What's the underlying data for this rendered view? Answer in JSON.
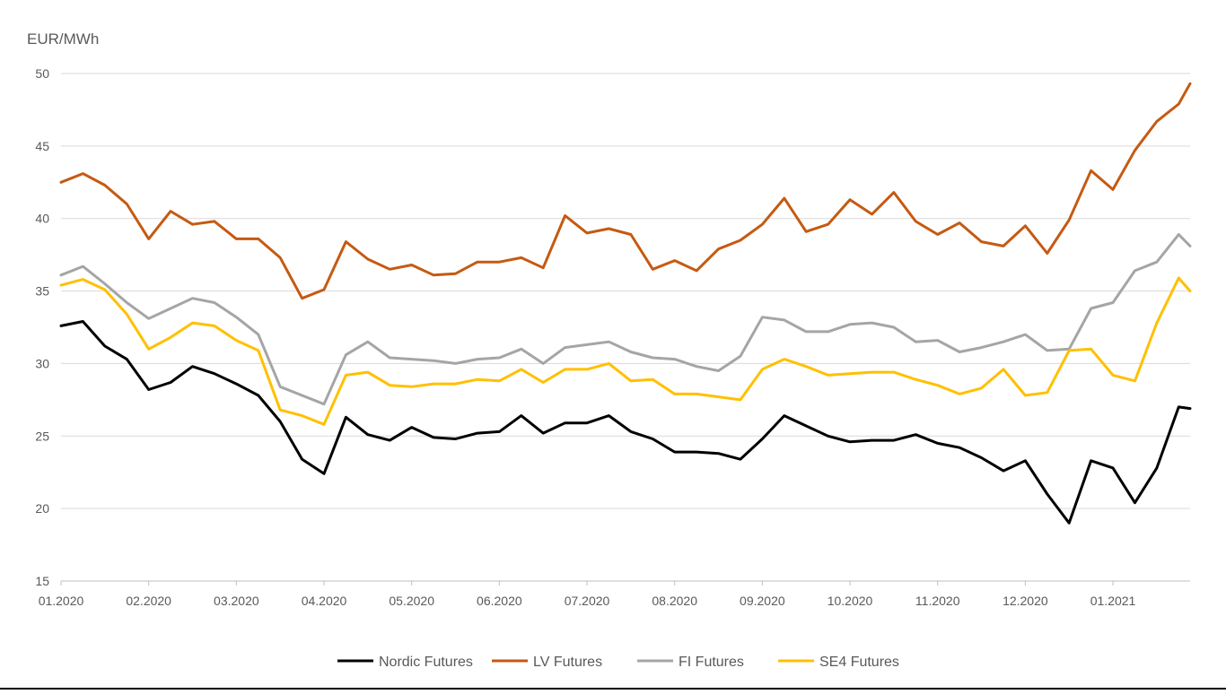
{
  "chart_data": {
    "type": "line",
    "title": "",
    "ylabel": "EUR/MWh",
    "xlabel": "",
    "ylim": [
      15,
      50
    ],
    "yticks": [
      15,
      20,
      25,
      30,
      35,
      40,
      45,
      50
    ],
    "x_tick_labels": [
      "01.2020",
      "02.2020",
      "03.2020",
      "04.2020",
      "05.2020",
      "06.2020",
      "07.2020",
      "08.2020",
      "09.2020",
      "10.2020",
      "11.2020",
      "12.2020",
      "01.2021"
    ],
    "x_domain": [
      0,
      12.88
    ],
    "grid": "horizontal",
    "legend_position": "bottom",
    "x": [
      0,
      0.25,
      0.5,
      0.75,
      1,
      1.25,
      1.5,
      1.75,
      2,
      2.25,
      2.5,
      2.75,
      3,
      3.25,
      3.5,
      3.75,
      4,
      4.25,
      4.5,
      4.75,
      5,
      5.25,
      5.5,
      5.75,
      6,
      6.25,
      6.5,
      6.75,
      7,
      7.25,
      7.5,
      7.75,
      8,
      8.25,
      8.5,
      8.75,
      9,
      9.25,
      9.5,
      9.75,
      10,
      10.25,
      10.5,
      10.75,
      11,
      11.25,
      11.5,
      11.75,
      12,
      12.25,
      12.5,
      12.75,
      12.88
    ],
    "series": [
      {
        "name": "Nordic Futures",
        "color": "#000000",
        "values": [
          32.6,
          32.9,
          31.2,
          30.3,
          28.2,
          28.7,
          29.8,
          29.3,
          28.6,
          27.8,
          26.0,
          23.4,
          22.4,
          26.3,
          25.1,
          24.7,
          25.6,
          24.9,
          24.8,
          25.2,
          25.3,
          26.4,
          25.2,
          25.9,
          25.9,
          26.4,
          25.3,
          24.8,
          23.9,
          23.9,
          23.8,
          23.4,
          24.8,
          26.4,
          25.7,
          25.0,
          24.6,
          24.7,
          24.7,
          25.1,
          24.5,
          24.2,
          23.5,
          22.6,
          23.3,
          21.0,
          19.0,
          23.3,
          22.8,
          20.4,
          22.8,
          27.0,
          26.9
        ]
      },
      {
        "name": "LV Futures",
        "color": "#C55A11",
        "values": [
          42.5,
          43.1,
          42.3,
          41.0,
          38.6,
          40.5,
          39.6,
          39.8,
          38.6,
          38.6,
          37.3,
          34.5,
          35.1,
          38.4,
          37.2,
          36.5,
          36.8,
          36.1,
          36.2,
          37.0,
          37.0,
          37.3,
          36.6,
          40.2,
          39.0,
          39.3,
          38.9,
          36.5,
          37.1,
          36.4,
          37.9,
          38.5,
          39.6,
          41.4,
          39.1,
          39.6,
          41.3,
          40.3,
          41.8,
          39.8,
          38.9,
          39.7,
          38.4,
          38.1,
          39.5,
          37.6,
          39.9,
          43.3,
          42.0,
          44.7,
          46.7,
          47.9,
          49.3
        ]
      },
      {
        "name": "FI Futures",
        "color": "#A5A5A5",
        "values": [
          36.1,
          36.7,
          35.5,
          34.2,
          33.1,
          33.8,
          34.5,
          34.2,
          33.2,
          32.0,
          28.4,
          27.8,
          27.2,
          30.6,
          31.5,
          30.4,
          30.3,
          30.2,
          30.0,
          30.3,
          30.4,
          31.0,
          30.0,
          31.1,
          31.3,
          31.5,
          30.8,
          30.4,
          30.3,
          29.8,
          29.5,
          30.5,
          33.2,
          33.0,
          32.2,
          32.2,
          32.7,
          32.8,
          32.5,
          31.5,
          31.6,
          30.8,
          31.1,
          31.5,
          32.0,
          30.9,
          31.0,
          33.8,
          34.2,
          36.4,
          37.0,
          38.9,
          38.1
        ]
      },
      {
        "name": "SE4 Futures",
        "color": "#FFC000",
        "values": [
          35.4,
          35.8,
          35.1,
          33.4,
          31.0,
          31.8,
          32.8,
          32.6,
          31.6,
          30.9,
          26.8,
          26.4,
          25.8,
          29.2,
          29.4,
          28.5,
          28.4,
          28.6,
          28.6,
          28.9,
          28.8,
          29.6,
          28.7,
          29.6,
          29.6,
          30.0,
          28.8,
          28.9,
          27.9,
          27.9,
          27.7,
          27.5,
          29.6,
          30.3,
          29.8,
          29.2,
          29.3,
          29.4,
          29.4,
          28.9,
          28.5,
          27.9,
          28.3,
          29.6,
          27.8,
          28.0,
          30.9,
          31.0,
          29.2,
          28.8,
          32.8,
          35.9,
          35.0
        ]
      }
    ]
  }
}
